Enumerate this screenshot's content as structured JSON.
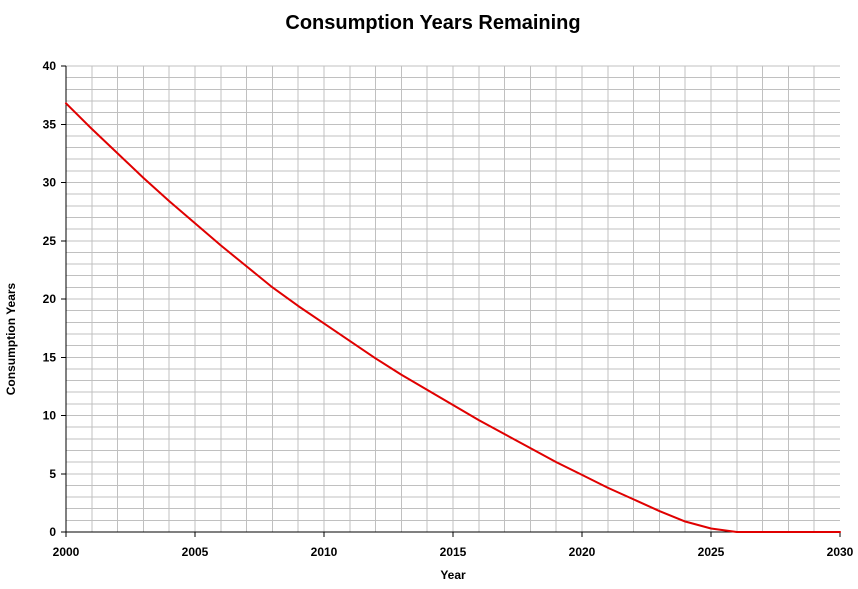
{
  "colors": {
    "line": "#e00000",
    "grid": "#c0c0c0",
    "axis": "#000000",
    "background": "#ffffff"
  },
  "chart_data": {
    "type": "line",
    "title": "Consumption Years Remaining",
    "xlabel": "Year",
    "ylabel": "Consumption Years",
    "xlim": [
      2000,
      2030
    ],
    "ylim": [
      0,
      40
    ],
    "x_ticks": [
      2000,
      2005,
      2010,
      2015,
      2020,
      2025,
      2030
    ],
    "y_ticks": [
      0,
      5,
      10,
      15,
      20,
      25,
      30,
      35,
      40
    ],
    "x_minor_step": 1,
    "y_minor_step": 1,
    "grid": true,
    "legend": "none",
    "series": [
      {
        "x": [
          2000,
          2001,
          2002,
          2003,
          2004,
          2005,
          2006,
          2007,
          2008,
          2009,
          2010,
          2011,
          2012,
          2013,
          2014,
          2015,
          2016,
          2017,
          2018,
          2019,
          2020,
          2021,
          2022,
          2023,
          2024,
          2025,
          2026,
          2027,
          2028,
          2029,
          2030
        ],
        "values": [
          36.8,
          34.6,
          32.5,
          30.4,
          28.4,
          26.5,
          24.6,
          22.8,
          21.0,
          19.4,
          17.9,
          16.4,
          14.9,
          13.5,
          12.2,
          10.9,
          9.6,
          8.4,
          7.2,
          6.0,
          4.9,
          3.8,
          2.8,
          1.8,
          0.9,
          0.3,
          0.0,
          0.0,
          0.0,
          0.0,
          0.0
        ]
      }
    ]
  }
}
